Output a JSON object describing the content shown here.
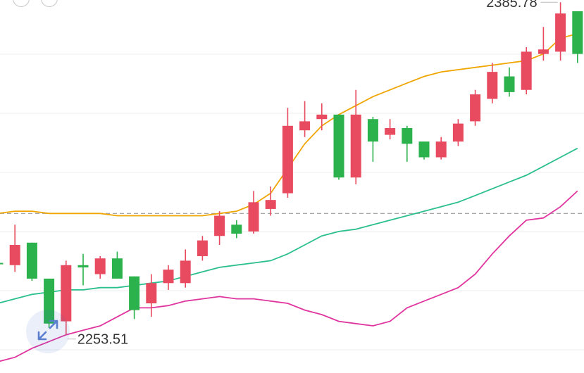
{
  "chart_data": {
    "type": "candlestick",
    "grid": true,
    "reference_line_value": 2306,
    "y_range": [
      2235,
      2401
    ],
    "annotations": {
      "high_label": "2385.78",
      "low_label": "2253.51"
    },
    "candles": [
      {
        "open": 2284,
        "close": 2284,
        "high": 2284,
        "low": 2281,
        "color": "green"
      },
      {
        "open": 2283,
        "close": 2292,
        "high": 2301,
        "low": 2280,
        "color": "red"
      },
      {
        "open": 2293,
        "close": 2277,
        "high": 2293,
        "low": 2276,
        "color": "green"
      },
      {
        "open": 2277,
        "close": 2257,
        "high": 2277,
        "low": 2255,
        "color": "green"
      },
      {
        "open": 2258,
        "close": 2283,
        "high": 2285,
        "low": 2252,
        "color": "red"
      },
      {
        "open": 2282,
        "close": 2283,
        "high": 2288,
        "low": 2274,
        "color": "green"
      },
      {
        "open": 2279,
        "close": 2286,
        "high": 2287,
        "low": 2277,
        "color": "red"
      },
      {
        "open": 2286,
        "close": 2277,
        "high": 2289,
        "low": 2277,
        "color": "green"
      },
      {
        "open": 2278,
        "close": 2263,
        "high": 2278,
        "low": 2259,
        "color": "green"
      },
      {
        "open": 2266,
        "close": 2275,
        "high": 2279,
        "low": 2260,
        "color": "red"
      },
      {
        "open": 2275,
        "close": 2281,
        "high": 2283,
        "low": 2272,
        "color": "red"
      },
      {
        "open": 2275,
        "close": 2285,
        "high": 2290,
        "low": 2273,
        "color": "red"
      },
      {
        "open": 2287,
        "close": 2294,
        "high": 2296,
        "low": 2285,
        "color": "red"
      },
      {
        "open": 2296,
        "close": 2305,
        "high": 2307,
        "low": 2292,
        "color": "red"
      },
      {
        "open": 2301,
        "close": 2297,
        "high": 2303,
        "low": 2295,
        "color": "green"
      },
      {
        "open": 2298,
        "close": 2311,
        "high": 2316,
        "low": 2297,
        "color": "red"
      },
      {
        "open": 2308,
        "close": 2312,
        "high": 2318,
        "low": 2305,
        "color": "red"
      },
      {
        "open": 2315,
        "close": 2345,
        "high": 2353,
        "low": 2313,
        "color": "red"
      },
      {
        "open": 2343,
        "close": 2347,
        "high": 2356,
        "low": 2340,
        "color": "red"
      },
      {
        "open": 2348,
        "close": 2350,
        "high": 2355,
        "low": 2343,
        "color": "red"
      },
      {
        "open": 2350,
        "close": 2322,
        "high": 2350,
        "low": 2321,
        "color": "green"
      },
      {
        "open": 2322,
        "close": 2350,
        "high": 2361,
        "low": 2319,
        "color": "red"
      },
      {
        "open": 2348,
        "close": 2338,
        "high": 2349,
        "low": 2329,
        "color": "green"
      },
      {
        "open": 2341,
        "close": 2344,
        "high": 2348,
        "low": 2339,
        "color": "red"
      },
      {
        "open": 2344,
        "close": 2337,
        "high": 2345,
        "low": 2329,
        "color": "green"
      },
      {
        "open": 2338,
        "close": 2331,
        "high": 2338,
        "low": 2330,
        "color": "green"
      },
      {
        "open": 2331,
        "close": 2338,
        "high": 2340,
        "low": 2330,
        "color": "red"
      },
      {
        "open": 2338,
        "close": 2346,
        "high": 2348,
        "low": 2336,
        "color": "red"
      },
      {
        "open": 2347,
        "close": 2359,
        "high": 2361,
        "low": 2345,
        "color": "red"
      },
      {
        "open": 2357,
        "close": 2369,
        "high": 2373,
        "low": 2355,
        "color": "red"
      },
      {
        "open": 2367,
        "close": 2360,
        "high": 2371,
        "low": 2358,
        "color": "green"
      },
      {
        "open": 2361,
        "close": 2378,
        "high": 2380,
        "low": 2359,
        "color": "red"
      },
      {
        "open": 2377,
        "close": 2379,
        "high": 2389,
        "low": 2374,
        "color": "red"
      },
      {
        "open": 2378,
        "close": 2395,
        "high": 2400,
        "low": 2374,
        "color": "red"
      },
      {
        "open": 2396,
        "close": 2377,
        "high": 2396,
        "low": 2373,
        "color": "green"
      }
    ],
    "series": [
      {
        "color": "#f0a500",
        "values": [
          2306,
          2307,
          2307,
          2306,
          2306,
          2306,
          2306,
          2305,
          2305,
          2305,
          2305,
          2305,
          2305,
          2306,
          2307,
          2310,
          2315,
          2326,
          2337,
          2345,
          2350,
          2354,
          2358,
          2361,
          2364,
          2367,
          2369,
          2370,
          2371,
          2372,
          2373,
          2374,
          2377,
          2384,
          2386
        ]
      },
      {
        "color": "#2bbf8f",
        "values": [
          2266,
          2268,
          2270,
          2271,
          2272,
          2272,
          2273,
          2273,
          2274,
          2275,
          2276,
          2278,
          2280,
          2282,
          2283,
          2284,
          2285,
          2288,
          2292,
          2296,
          2298,
          2299,
          2301,
          2303,
          2305,
          2307,
          2309,
          2311,
          2314,
          2317,
          2320,
          2323,
          2327,
          2331,
          2335
        ]
      },
      {
        "color": "#e0359f",
        "values": [
          2240,
          2242,
          2246,
          2249,
          2252,
          2254,
          2256,
          2260,
          2264,
          2264,
          2265,
          2267,
          2268,
          2269,
          2268,
          2268,
          2267,
          2266,
          2263,
          2261,
          2258,
          2257,
          2256,
          2258,
          2264,
          2267,
          2270,
          2273,
          2279,
          2288,
          2296,
          2303,
          2304,
          2309,
          2316
        ]
      }
    ]
  }
}
